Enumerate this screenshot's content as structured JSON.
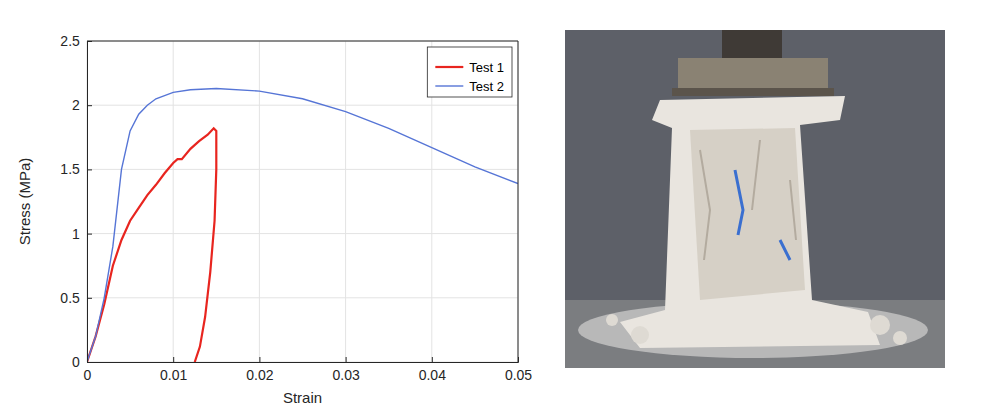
{
  "chart_data": {
    "type": "line",
    "x_label": "Strain",
    "y_label": "Stress (MPa)",
    "xlim": [
      0,
      0.05
    ],
    "ylim": [
      0,
      2.5
    ],
    "xticks": [
      0,
      0.01,
      0.02,
      0.03,
      0.04,
      0.05
    ],
    "yticks": [
      0,
      0.5,
      1,
      1.5,
      2,
      2.5
    ],
    "grid": true,
    "legend": "upper right",
    "series": [
      {
        "name": "Test 1",
        "color": "#e8251f",
        "x": [
          0,
          0.001,
          0.002,
          0.003,
          0.004,
          0.005,
          0.006,
          0.007,
          0.008,
          0.009,
          0.01,
          0.0105,
          0.011,
          0.012,
          0.013,
          0.014,
          0.0147,
          0.015,
          0.015,
          0.0148,
          0.0143,
          0.0137,
          0.0131,
          0.0125
        ],
        "values": [
          0,
          0.2,
          0.45,
          0.75,
          0.95,
          1.1,
          1.2,
          1.3,
          1.38,
          1.47,
          1.55,
          1.58,
          1.58,
          1.66,
          1.72,
          1.77,
          1.82,
          1.8,
          1.5,
          1.1,
          0.7,
          0.35,
          0.12,
          0
        ]
      },
      {
        "name": "Test 2",
        "color": "#5675d6",
        "x": [
          0,
          0.001,
          0.002,
          0.003,
          0.004,
          0.005,
          0.006,
          0.007,
          0.008,
          0.01,
          0.012,
          0.015,
          0.02,
          0.025,
          0.03,
          0.035,
          0.04,
          0.045,
          0.05
        ],
        "values": [
          0,
          0.2,
          0.5,
          0.9,
          1.5,
          1.8,
          1.93,
          2.0,
          2.05,
          2.1,
          2.12,
          2.13,
          2.11,
          2.05,
          1.95,
          1.82,
          1.67,
          1.52,
          1.39
        ]
      }
    ]
  }
}
